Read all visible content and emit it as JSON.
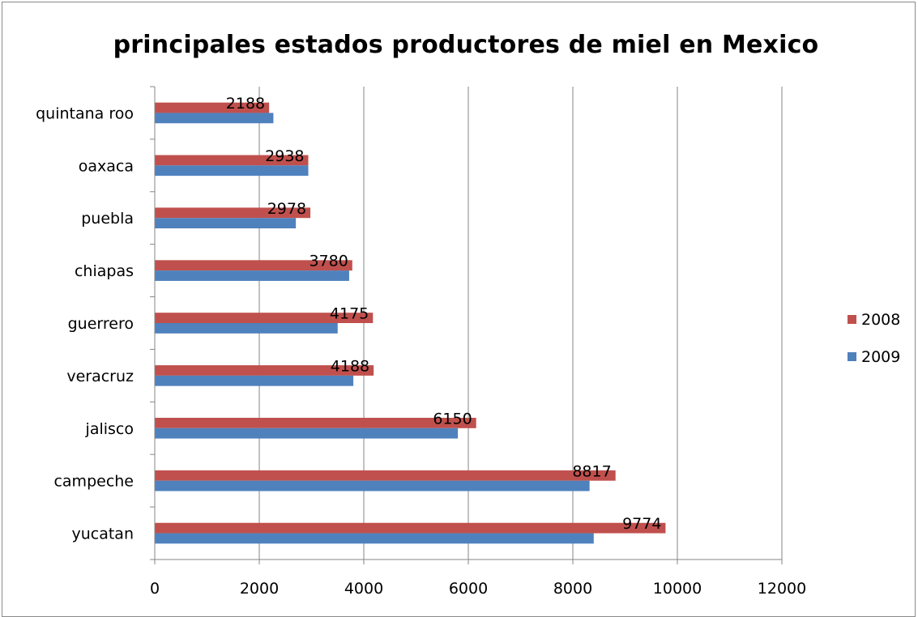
{
  "chart_data": {
    "type": "bar",
    "orientation": "horizontal",
    "title": "principales estados productores de miel en Mexico",
    "categories": [
      "yucatan",
      "campeche",
      "jalisco",
      "veracruz",
      "guerrero",
      "chiapas",
      "puebla",
      "oaxaca",
      "quintana roo"
    ],
    "series": [
      {
        "name": "2009",
        "color": "#4f81bd",
        "values": [
          8400,
          8320,
          5800,
          3800,
          3500,
          3720,
          2700,
          2938,
          2270
        ]
      },
      {
        "name": "2008",
        "color": "#c0504d",
        "values": [
          9774,
          8817,
          6150,
          4188,
          4175,
          3780,
          2978,
          2938,
          2188
        ],
        "data_labels": [
          "9774",
          "8817",
          "6150",
          "4188",
          "4175",
          "3780",
          "2978",
          "2938",
          "2188"
        ]
      }
    ],
    "x_ticks": [
      "0",
      "2000",
      "4000",
      "6000",
      "8000",
      "10000",
      "12000"
    ],
    "xlim": [
      0,
      12000
    ],
    "xlabel": "",
    "ylabel": "",
    "grid": "vertical major gridlines",
    "legend_position": "right",
    "legend_order": [
      "2008",
      "2009"
    ]
  }
}
